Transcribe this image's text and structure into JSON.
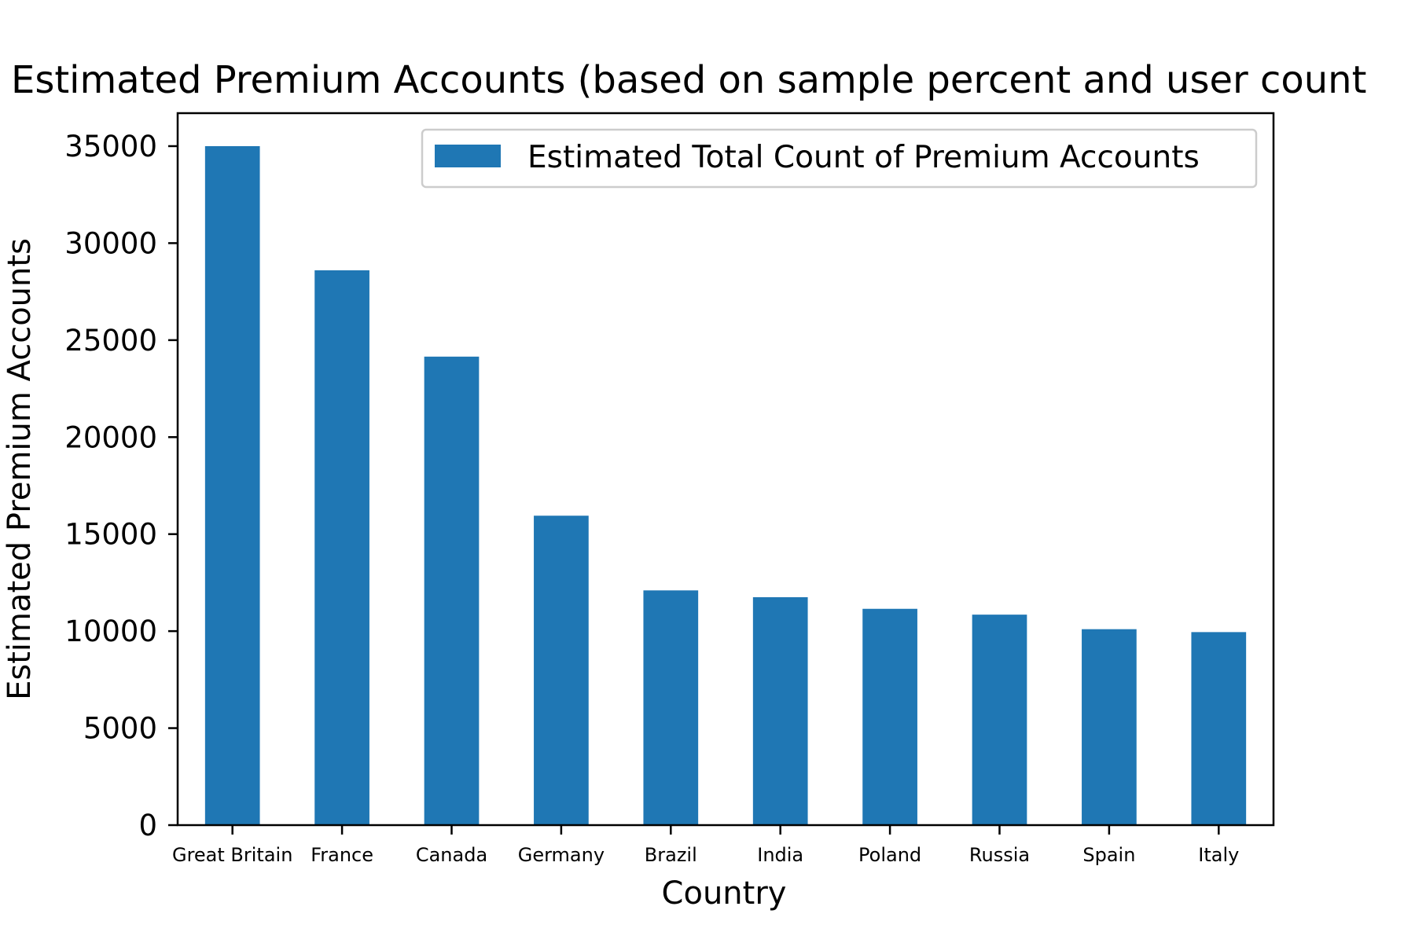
{
  "chart_data": {
    "type": "bar",
    "title": "Estimated Premium Accounts (based on sample percent and user count",
    "xlabel": "Country",
    "ylabel": "Estimated Premium Accounts",
    "categories": [
      "Great Britain",
      "France",
      "Canada",
      "Germany",
      "Brazil",
      "India",
      "Poland",
      "Russia",
      "Spain",
      "Italy"
    ],
    "series": [
      {
        "name": "Estimated Total Count of Premium Accounts",
        "color": "#1f77b4",
        "values": [
          35000,
          28600,
          24150,
          15950,
          12100,
          11750,
          11150,
          10850,
          10100,
          9950
        ]
      }
    ],
    "ylim": [
      0,
      36700
    ],
    "yticks": [
      0,
      5000,
      10000,
      15000,
      20000,
      25000,
      30000,
      35000
    ],
    "grid": false,
    "legend_position": "top-right"
  }
}
